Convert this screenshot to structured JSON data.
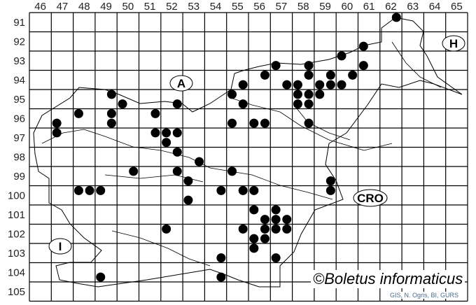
{
  "map": {
    "columns": [
      46,
      47,
      48,
      49,
      50,
      51,
      52,
      53,
      54,
      55,
      56,
      57,
      58,
      59,
      60,
      61,
      62,
      63,
      64,
      65
    ],
    "rows": [
      91,
      92,
      93,
      94,
      95,
      96,
      97,
      98,
      99,
      100,
      101,
      102,
      103,
      104,
      105
    ],
    "country_labels": [
      "A",
      "H",
      "CRO",
      "I"
    ],
    "watermark": "©Boletus informaticus",
    "source": "GIS, N. Ogris, BI, GURS",
    "dot_color": "#000000",
    "records": [
      [
        49.75,
        95.25
      ],
      [
        50.25,
        95.75
      ],
      [
        48.25,
        96.25
      ],
      [
        49.75,
        96.25
      ],
      [
        51.75,
        96.25
      ],
      [
        52.75,
        95.75
      ],
      [
        55.25,
        95.25
      ],
      [
        47.25,
        96.75
      ],
      [
        49.75,
        96.75
      ],
      [
        55.25,
        96.75
      ],
      [
        47.25,
        97.25
      ],
      [
        51.75,
        97.25
      ],
      [
        52.25,
        97.25
      ],
      [
        52.75,
        97.25
      ],
      [
        52.25,
        97.75
      ],
      [
        52.75,
        98.25
      ],
      [
        62.75,
        91.25
      ],
      [
        61.25,
        92.75
      ],
      [
        60.25,
        93.25
      ],
      [
        57.25,
        93.75
      ],
      [
        58.75,
        93.75
      ],
      [
        61.25,
        93.75
      ],
      [
        56.75,
        94.25
      ],
      [
        58.75,
        94.25
      ],
      [
        59.75,
        94.25
      ],
      [
        60.75,
        94.25
      ],
      [
        55.75,
        94.75
      ],
      [
        57.75,
        94.75
      ],
      [
        58.25,
        94.75
      ],
      [
        59.25,
        94.75
      ],
      [
        59.75,
        94.75
      ],
      [
        60.25,
        94.75
      ],
      [
        58.25,
        95.25
      ],
      [
        58.75,
        95.25
      ],
      [
        59.25,
        95.25
      ],
      [
        58.25,
        95.75
      ],
      [
        58.75,
        95.75
      ],
      [
        55.75,
        95.75
      ],
      [
        56.25,
        96.75
      ],
      [
        56.75,
        96.75
      ],
      [
        58.75,
        96.75
      ],
      [
        53.75,
        98.75
      ],
      [
        50.75,
        99.25
      ],
      [
        52.75,
        99.25
      ],
      [
        55.25,
        99.25
      ],
      [
        53.25,
        99.75
      ],
      [
        48.25,
        100.25
      ],
      [
        48.75,
        100.25
      ],
      [
        49.25,
        100.25
      ],
      [
        54.75,
        100.25
      ],
      [
        53.25,
        100.75
      ],
      [
        52.25,
        102.25
      ],
      [
        54.75,
        103.75
      ],
      [
        49.25,
        104.75
      ],
      [
        54.75,
        104.75
      ],
      [
        59.75,
        99.75
      ],
      [
        59.75,
        100.25
      ],
      [
        55.75,
        100.25
      ],
      [
        56.25,
        100.25
      ],
      [
        56.25,
        101.25
      ],
      [
        57.25,
        101.25
      ],
      [
        56.75,
        101.75
      ],
      [
        57.25,
        101.75
      ],
      [
        57.75,
        101.75
      ],
      [
        55.75,
        102.25
      ],
      [
        56.75,
        102.25
      ],
      [
        57.25,
        102.25
      ],
      [
        57.75,
        102.25
      ],
      [
        56.25,
        102.75
      ],
      [
        56.75,
        102.75
      ],
      [
        56.25,
        103.25
      ],
      [
        57.25,
        103.75
      ]
    ]
  }
}
